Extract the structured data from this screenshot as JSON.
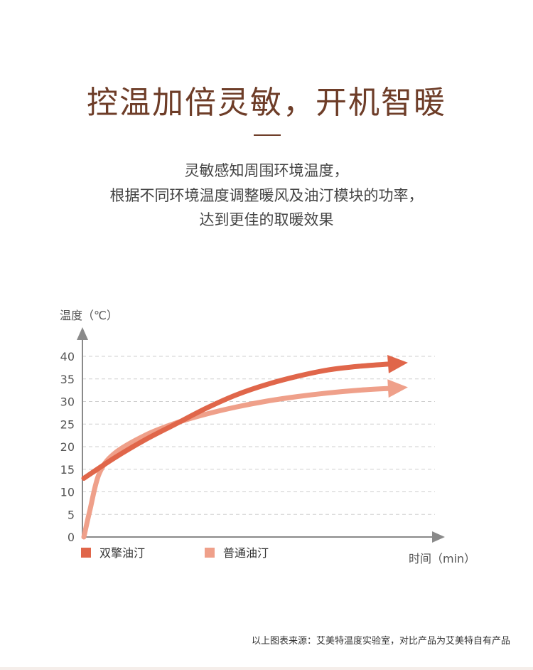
{
  "headline": "控温加倍灵敏，开机智暖",
  "description": [
    "灵敏感知周围环境温度，",
    "根据不同环境温度调整暖风及油汀模块的功率，",
    "达到更佳的取暖效果"
  ],
  "colors": {
    "series1": "#e0664a",
    "series2": "#efa08a",
    "axis": "#8a8a8a",
    "grid": "#cfcfcf",
    "headline": "#6e3d28"
  },
  "footnote": "以上图表来源：艾美特温度实验室，对比产品为艾美特自有产品",
  "chart_data": {
    "type": "line",
    "title": "",
    "ylabel": "温度（℃）",
    "xlabel": "时间（min）",
    "ylim": [
      0,
      40
    ],
    "yticks": [
      "0",
      "5",
      "10",
      "15",
      "20",
      "25",
      "30",
      "35",
      "40"
    ],
    "grid": "dashed horizontal",
    "legend_position": "bottom-left",
    "series": [
      {
        "name": "双擎油汀",
        "color": "#e0664a",
        "points": [
          [
            0,
            13
          ],
          [
            0.1,
            17.5
          ],
          [
            0.2,
            21.5
          ],
          [
            0.3,
            25
          ],
          [
            0.4,
            28.5
          ],
          [
            0.5,
            31.5
          ],
          [
            0.6,
            33.8
          ],
          [
            0.7,
            35.6
          ],
          [
            0.8,
            37
          ],
          [
            0.9,
            37.8
          ],
          [
            1.0,
            38.3
          ]
        ]
      },
      {
        "name": "普通油汀",
        "color": "#efa08a",
        "points": [
          [
            0,
            0
          ],
          [
            0.02,
            6
          ],
          [
            0.05,
            14
          ],
          [
            0.1,
            18.5
          ],
          [
            0.2,
            22.5
          ],
          [
            0.3,
            25.2
          ],
          [
            0.4,
            27.2
          ],
          [
            0.5,
            28.8
          ],
          [
            0.6,
            30.1
          ],
          [
            0.7,
            31.1
          ],
          [
            0.8,
            31.9
          ],
          [
            0.9,
            32.5
          ],
          [
            1.0,
            32.9
          ]
        ]
      }
    ]
  }
}
